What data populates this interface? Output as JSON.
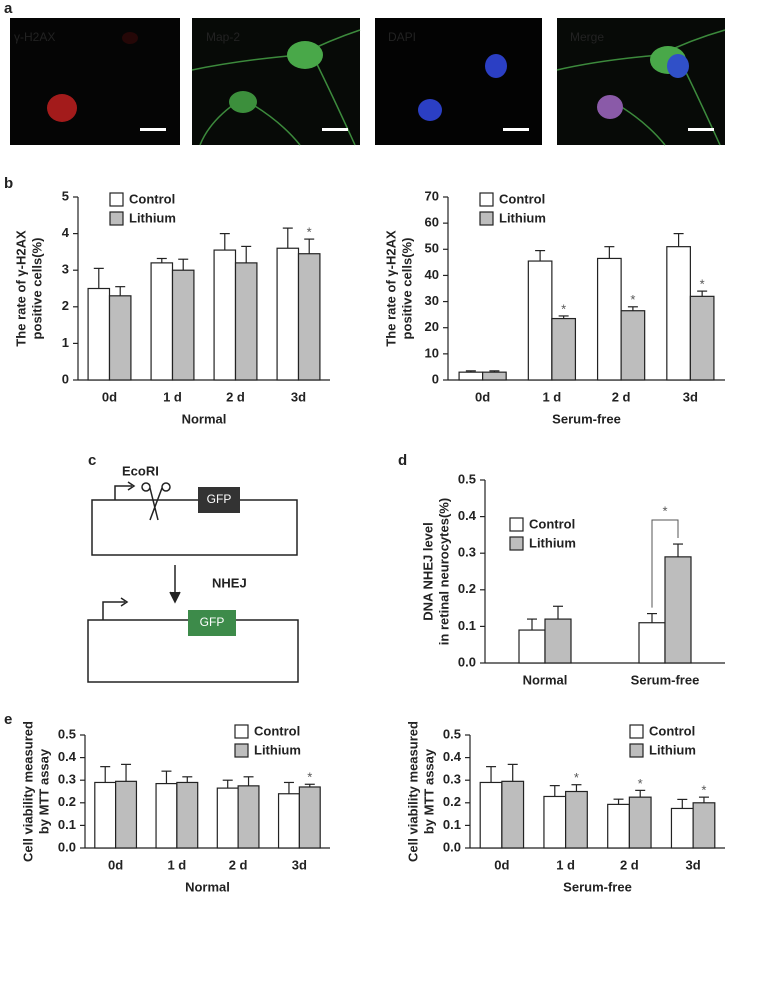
{
  "panel_labels": [
    "a",
    "b",
    "c",
    "d",
    "e"
  ],
  "micrographs": [
    {
      "label": "γ-H2AX",
      "color": "#e8393b"
    },
    {
      "label": "Map-2",
      "color": "#5ed35e"
    },
    {
      "label": "DAPI",
      "color": "#4a63e8"
    },
    {
      "label": "Merge",
      "color": "#e040b0"
    }
  ],
  "diagram": {
    "enzyme": "EcoRI",
    "gene_before": "GFP",
    "process": "NHEJ",
    "gene_after": "GFP"
  },
  "chart_data": [
    {
      "type": "bar",
      "ylabel": [
        "The rate of γ-H2AX",
        "positive cells(%)"
      ],
      "xlabel": "Normal",
      "categories": [
        "0d",
        "1 d",
        "2 d",
        "3d"
      ],
      "series": [
        {
          "name": "Control",
          "color": "#ffffff",
          "values": [
            2.5,
            3.2,
            3.55,
            3.6
          ],
          "errors": [
            0.55,
            0.12,
            0.45,
            0.55
          ],
          "markers": [
            null,
            null,
            null,
            null
          ]
        },
        {
          "name": "Lithium",
          "color": "#bdbdbd",
          "values": [
            2.3,
            3.0,
            3.2,
            3.45
          ],
          "errors": [
            0.25,
            0.3,
            0.45,
            0.4
          ],
          "markers": [
            null,
            null,
            null,
            "*"
          ]
        }
      ],
      "ylim": [
        0,
        5
      ],
      "yticks": [
        0,
        1,
        2,
        3,
        4,
        5
      ],
      "legend": "top-left"
    },
    {
      "type": "bar",
      "ylabel": [
        "The rate of γ-H2AX",
        "positive cells(%)"
      ],
      "xlabel": "Serum-free",
      "categories": [
        "0d",
        "1 d",
        "2 d",
        "3d"
      ],
      "series": [
        {
          "name": "Control",
          "color": "#ffffff",
          "values": [
            3,
            45.5,
            46.5,
            51
          ],
          "errors": [
            0.5,
            4,
            4.5,
            5
          ],
          "markers": [
            null,
            null,
            null,
            null
          ]
        },
        {
          "name": "Lithium",
          "color": "#bdbdbd",
          "values": [
            3,
            23.5,
            26.5,
            32
          ],
          "errors": [
            0.5,
            1,
            1.5,
            2
          ],
          "markers": [
            null,
            "*",
            "*",
            "*"
          ]
        }
      ],
      "ylim": [
        0,
        70
      ],
      "yticks": [
        0,
        10,
        20,
        30,
        40,
        50,
        60,
        70
      ],
      "legend": "top-left"
    },
    {
      "type": "bar",
      "ylabel": [
        "DNA NHEJ level",
        "in retinal neurocytes(%)"
      ],
      "categories": [
        "Normal",
        "Serum-free"
      ],
      "series": [
        {
          "name": "Control",
          "color": "#ffffff",
          "values": [
            0.09,
            0.11
          ],
          "errors": [
            0.03,
            0.025
          ],
          "markers": [
            null,
            null
          ]
        },
        {
          "name": "Lithium",
          "color": "#bdbdbd",
          "values": [
            0.12,
            0.29
          ],
          "errors": [
            0.035,
            0.035
          ],
          "markers": [
            null,
            null
          ]
        }
      ],
      "bracket_label": "*",
      "ylim": [
        0,
        0.5
      ],
      "yticks": [
        {
          "value": 0,
          "label": "0.0"
        },
        0.1,
        0.2,
        0.3,
        0.4,
        0.5
      ],
      "legend": "upper-left"
    },
    {
      "type": "bar",
      "ylabel": [
        "Cell viability measured",
        "by MTT assay"
      ],
      "xlabel": "Normal",
      "categories": [
        "0d",
        "1 d",
        "2 d",
        "3d"
      ],
      "series": [
        {
          "name": "Control",
          "color": "#ffffff",
          "values": [
            0.29,
            0.285,
            0.265,
            0.24
          ],
          "errors": [
            0.07,
            0.055,
            0.035,
            0.05
          ],
          "markers": [
            null,
            null,
            null,
            null
          ]
        },
        {
          "name": "Lithium",
          "color": "#bdbdbd",
          "values": [
            0.295,
            0.29,
            0.275,
            0.27
          ],
          "errors": [
            0.075,
            0.025,
            0.04,
            0.012
          ],
          "markers": [
            null,
            null,
            null,
            "*"
          ]
        }
      ],
      "ylim": [
        0,
        0.5
      ],
      "yticks": [
        {
          "value": 0,
          "label": "0.0"
        },
        0.1,
        0.2,
        0.3,
        0.4,
        0.5
      ],
      "legend": "top-right"
    },
    {
      "type": "bar",
      "ylabel": [
        "Cell viability measured",
        "by MTT assay"
      ],
      "xlabel": "Serum-free",
      "categories": [
        "0d",
        "1 d",
        "2 d",
        "3d"
      ],
      "series": [
        {
          "name": "Control",
          "color": "#ffffff",
          "values": [
            0.29,
            0.228,
            0.193,
            0.175
          ],
          "errors": [
            0.07,
            0.048,
            0.023,
            0.04
          ],
          "markers": [
            null,
            null,
            null,
            null
          ]
        },
        {
          "name": "Lithium",
          "color": "#bdbdbd",
          "values": [
            0.295,
            0.25,
            0.225,
            0.2
          ],
          "errors": [
            0.075,
            0.03,
            0.03,
            0.025
          ],
          "markers": [
            null,
            "*",
            "*",
            "*"
          ]
        }
      ],
      "ylim": [
        0,
        0.5
      ],
      "yticks": [
        {
          "value": 0,
          "label": "0.0"
        },
        0.1,
        0.2,
        0.3,
        0.4,
        0.5
      ],
      "legend": "top-right"
    }
  ]
}
